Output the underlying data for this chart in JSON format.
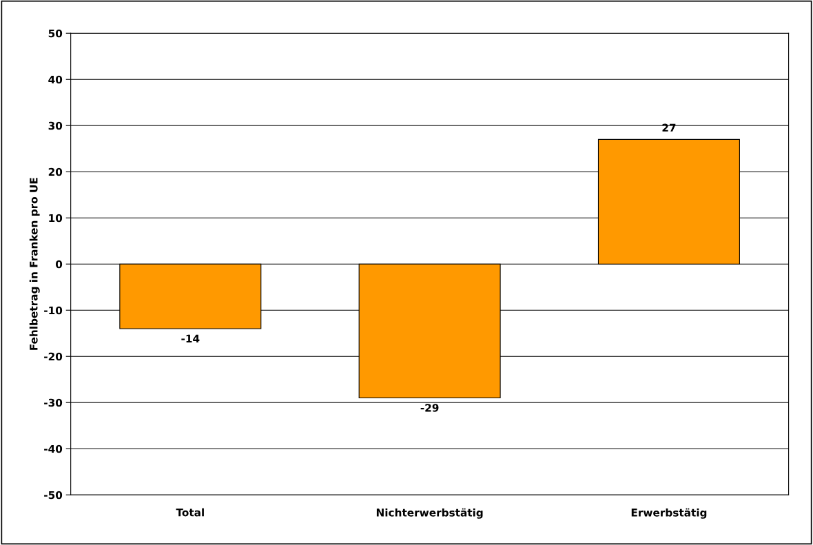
{
  "chart_data": {
    "type": "bar",
    "ylabel": "Fehlbetrag in Franken pro UE",
    "categories": [
      "Total",
      "Nichterwerbstätig",
      "Erwerbstätig"
    ],
    "values": [
      -14,
      -29,
      27
    ],
    "color": "#ff9900",
    "ylim": [
      -50,
      50
    ],
    "yticks": [
      -50,
      -40,
      -30,
      -20,
      -10,
      0,
      10,
      20,
      30,
      40,
      50
    ],
    "grid": "y",
    "data_labels": true
  }
}
